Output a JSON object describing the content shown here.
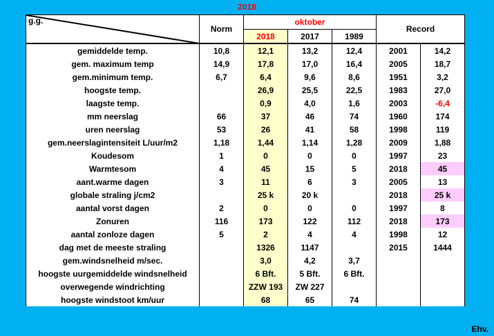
{
  "title": "2018",
  "header": {
    "gg": "g.g.",
    "norm": "Norm",
    "month": "oktober",
    "years": [
      "2018",
      "2017",
      "1989"
    ],
    "record": "Record"
  },
  "rows": [
    {
      "label": "gemiddelde temp.",
      "norm": "10,8",
      "y2018": "12,1",
      "y2017": "13,2",
      "y1989": "12,4",
      "rec_year": "2001",
      "rec_val": "14,2"
    },
    {
      "label": "gem. maximum temp",
      "norm": "14,9",
      "y2018": "17,8",
      "y2017": "17,0",
      "y1989": "16,4",
      "rec_year": "2005",
      "rec_val": "18,7"
    },
    {
      "label": "gem.minimum temp.",
      "norm": "6,7",
      "y2018": "6,4",
      "y2017": "9,6",
      "y1989": "8,6",
      "rec_year": "1951",
      "rec_val": "3,2"
    },
    {
      "label": "hoogste temp.",
      "norm": "",
      "y2018": "26,9",
      "y2017": "25,5",
      "y1989": "22,5",
      "rec_year": "1983",
      "rec_val": "27,0"
    },
    {
      "label": "laagste temp.",
      "norm": "",
      "y2018": "0,9",
      "y2017": "4,0",
      "y1989": "1,6",
      "rec_year": "2003",
      "rec_val": "-6,4",
      "rec_color": "#ff0000"
    },
    {
      "label": "mm neerslag",
      "norm": "66",
      "y2018": "37",
      "y2017": "46",
      "y1989": "74",
      "rec_year": "1960",
      "rec_val": "174"
    },
    {
      "label": "uren neerslag",
      "norm": "53",
      "y2018": "26",
      "y2017": "41",
      "y1989": "58",
      "rec_year": "1998",
      "rec_val": "119"
    },
    {
      "label": "gem.neerslagintensiteit L/uur/m2",
      "norm": "1,18",
      "y2018": "1,44",
      "y2017": "1,14",
      "y1989": "1,28",
      "rec_year": "2009",
      "rec_val": "1,88"
    },
    {
      "label": "Koudesom",
      "norm": "1",
      "y2018": "0",
      "y2017": "0",
      "y1989": "0",
      "rec_year": "1997",
      "rec_val": "23"
    },
    {
      "label": "Warmtesom",
      "norm": "4",
      "y2018": "45",
      "y2017": "15",
      "y1989": "5",
      "rec_year": "2018",
      "rec_val": "45",
      "rec_bg": "#ffccff"
    },
    {
      "label": "aant.warme dagen",
      "norm": "3",
      "y2018": "11",
      "y2017": "6",
      "y1989": "3",
      "rec_year": "2005",
      "rec_val": "13"
    },
    {
      "label": "globale straling j/cm2",
      "norm": "",
      "y2018": "25 k",
      "y2017": "20 k",
      "y1989": "",
      "rec_year": "2018",
      "rec_val": "25 k",
      "rec_bg": "#ffccff"
    },
    {
      "label": "aantal vorst dagen",
      "norm": "2",
      "y2018": "0",
      "y2017": "0",
      "y1989": "0",
      "rec_year": "1997",
      "rec_val": "8"
    },
    {
      "label": "Zonuren",
      "norm": "116",
      "y2018": "173",
      "y2017": "122",
      "y1989": "112",
      "rec_year": "2018",
      "rec_val": "173",
      "rec_bg": "#ffccff"
    },
    {
      "label": "aantal zonloze dagen",
      "norm": "5",
      "y2018": "2",
      "y2017": "4",
      "y1989": "4",
      "rec_year": "1998",
      "rec_val": "12"
    },
    {
      "label": "dag met de meeste straling",
      "norm": "",
      "y2018": "1326",
      "y2017": "1147",
      "y1989": "",
      "rec_year": "2015",
      "rec_val": "1444"
    },
    {
      "label": "gem.windsnelheid m/sec.",
      "norm": "",
      "y2018": "3,0",
      "y2017": "4,2",
      "y1989": "3,7",
      "rec_year": "",
      "rec_val": ""
    },
    {
      "label": "hoogste uurgemiddelde windsnelheid",
      "norm": "",
      "y2018": "6 Bft.",
      "y2017": "5 Bft.",
      "y1989": "6 Bft.",
      "rec_year": "",
      "rec_val": ""
    },
    {
      "label": "overwegende windrichting",
      "norm": "",
      "y2018": "ZZW 193",
      "y2017": "ZW 227",
      "y1989": "",
      "rec_year": "",
      "rec_val": ""
    },
    {
      "label": "hoogste windstoot km/uur",
      "norm": "",
      "y2018": "68",
      "y2017": "65",
      "y1989": "74",
      "rec_year": "",
      "rec_val": ""
    }
  ],
  "footer": "Ehv.",
  "colors": {
    "background": "#00b0f0",
    "highlight_column": "#ffffcc",
    "record_highlight": "#ffccff",
    "accent_red": "#ff0000"
  }
}
